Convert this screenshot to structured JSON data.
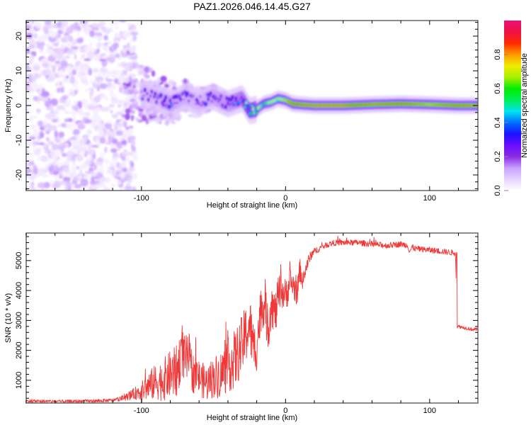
{
  "chart_data": [
    {
      "type": "heatmap",
      "title": "PAZ1.2026.046.14.45.G27",
      "xlabel": "Height of straight line (km)",
      "ylabel": "Frequency (Hz)",
      "xlim": [
        -180,
        133.5
      ],
      "ylim": [
        -24.5,
        24.5
      ],
      "x_ticks": [
        -100,
        0,
        100
      ],
      "x_minor_step": 20,
      "y_ticks": [
        -20,
        -10,
        0,
        10,
        20
      ],
      "y_minor_step": 2,
      "grid": false,
      "colorbar": {
        "label": "Normalized spectral amplitude",
        "range": [
          0,
          1
        ],
        "ticks": [
          0.0,
          0.2,
          0.4,
          0.6,
          0.8
        ],
        "colormap": [
          "#ffffff",
          "#e6d2ff",
          "#c8a0ff",
          "#8a2be2",
          "#6a0dff",
          "#1a10ff",
          "#0070ff",
          "#00e5ee",
          "#00ee55",
          "#00ee00",
          "#aaee00",
          "#eeee00",
          "#ff9900",
          "#ff2a00",
          "#ee1144",
          "#ee1177"
        ]
      },
      "ridge": {
        "description": "Carrier frequency trace vs height",
        "x": [
          -100,
          -90,
          -80,
          -70,
          -60,
          -50,
          -40,
          -30,
          -25,
          -20,
          -15,
          -10,
          -5,
          0,
          5,
          10,
          20,
          40,
          60,
          80,
          100,
          120,
          133
        ],
        "y": [
          3.5,
          2.5,
          0.5,
          2.5,
          1.0,
          2.5,
          0.5,
          2.0,
          -1.5,
          -1.0,
          0.5,
          1.0,
          2.0,
          1.5,
          0.5,
          0.3,
          0.0,
          0.0,
          0.3,
          0.5,
          0.3,
          0.0,
          0.0
        ],
        "amplitude": [
          0.2,
          0.22,
          0.3,
          0.25,
          0.22,
          0.28,
          0.3,
          0.35,
          0.55,
          0.8,
          0.6,
          0.75,
          0.7,
          0.78,
          0.9,
          0.95,
          0.98,
          0.98,
          0.85,
          0.9,
          0.8,
          0.9,
          0.85
        ]
      },
      "noise_region": {
        "x_range": [
          -180,
          -110
        ],
        "amplitude_range": [
          0.02,
          0.15
        ],
        "freq_range": [
          -24.5,
          24.5
        ]
      }
    },
    {
      "type": "line",
      "title": "",
      "xlabel": "Height of straight line (km)",
      "ylabel": "SNR (10 * v/v)",
      "xlim": [
        -180,
        133.5
      ],
      "ylim": [
        240,
        5920
      ],
      "x_ticks": [
        -100,
        0,
        100
      ],
      "x_minor_step": 20,
      "y_ticks": [
        1000,
        2000,
        3000,
        4000,
        5000
      ],
      "y_minor_step": 200,
      "grid": false,
      "series": [
        {
          "name": "SNR",
          "color": "#ee2222",
          "x": [
            -180,
            -170,
            -160,
            -150,
            -140,
            -130,
            -120,
            -115,
            -110,
            -105,
            -100,
            -95,
            -90,
            -85,
            -80,
            -75,
            -72,
            -70,
            -67,
            -65,
            -60,
            -55,
            -50,
            -45,
            -40,
            -35,
            -30,
            -27,
            -25,
            -22,
            -20,
            -17,
            -15,
            -12,
            -10,
            -7,
            -5,
            -2,
            0,
            3,
            5,
            8,
            10,
            12,
            15,
            18,
            20,
            25,
            30,
            35,
            40,
            50,
            60,
            70,
            80,
            85,
            86,
            88,
            90,
            100,
            110,
            118,
            119,
            120,
            125,
            130,
            133
          ],
          "y": [
            300,
            300,
            290,
            290,
            300,
            310,
            330,
            380,
            450,
            550,
            650,
            800,
            950,
            1000,
            1200,
            1300,
            2100,
            1600,
            1800,
            1300,
            1100,
            900,
            1100,
            1200,
            1500,
            1700,
            2200,
            2600,
            2900,
            2000,
            2200,
            3400,
            3600,
            2700,
            3600,
            3200,
            3800,
            4000,
            3800,
            4300,
            4200,
            3900,
            4700,
            4300,
            4900,
            5200,
            5300,
            5450,
            5550,
            5600,
            5600,
            5600,
            5550,
            5500,
            5550,
            5500,
            5300,
            5450,
            5400,
            5350,
            5300,
            5250,
            2800,
            2800,
            2750,
            2700,
            2700
          ],
          "noise_amplitude": [
            60,
            60,
            60,
            60,
            60,
            60,
            60,
            80,
            120,
            200,
            300,
            500,
            600,
            700,
            800,
            900,
            900,
            900,
            800,
            700,
            600,
            600,
            700,
            800,
            900,
            1000,
            1000,
            1000,
            1000,
            900,
            900,
            800,
            800,
            800,
            800,
            700,
            700,
            600,
            600,
            500,
            500,
            400,
            400,
            300,
            250,
            150,
            120,
            100,
            100,
            100,
            100,
            100,
            100,
            100,
            100,
            100,
            100,
            100,
            100,
            100,
            100,
            100,
            60,
            60,
            60,
            60,
            60
          ]
        }
      ]
    }
  ]
}
